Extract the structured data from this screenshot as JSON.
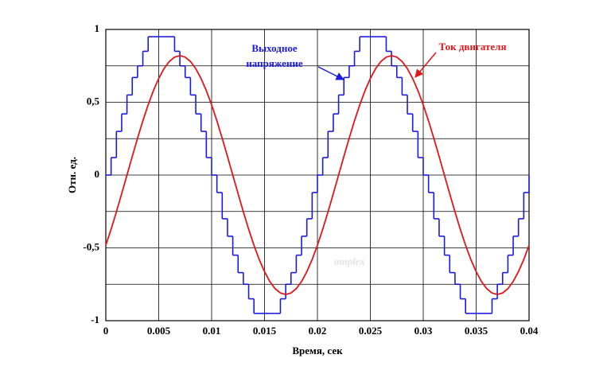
{
  "chart_data": {
    "type": "line",
    "xlabel": "Время, сек",
    "ylabel": "Отн. ед.",
    "watermark": "omplex",
    "x": [
      0,
      0.0005,
      0.001,
      0.0015,
      0.002,
      0.0025,
      0.003,
      0.0035,
      0.004,
      0.0045,
      0.005,
      0.0055,
      0.006,
      0.0065,
      0.007,
      0.0075,
      0.008,
      0.0085,
      0.009,
      0.0095,
      0.01,
      0.0105,
      0.011,
      0.0115,
      0.012,
      0.0125,
      0.013,
      0.0135,
      0.014,
      0.0145,
      0.015,
      0.0155,
      0.016,
      0.0165,
      0.017,
      0.0175,
      0.018,
      0.0185,
      0.019,
      0.0195,
      0.02,
      0.0205,
      0.021,
      0.0215,
      0.022,
      0.0225,
      0.023,
      0.0235,
      0.024,
      0.0245,
      0.025,
      0.0255,
      0.026,
      0.0265,
      0.027,
      0.0275,
      0.028,
      0.0285,
      0.029,
      0.0295,
      0.03,
      0.0305,
      0.031,
      0.0315,
      0.032,
      0.0325,
      0.033,
      0.0335,
      0.034,
      0.0345,
      0.035,
      0.0355,
      0.036,
      0.0365,
      0.037,
      0.0375,
      0.038,
      0.0385,
      0.039,
      0.0395,
      0.04
    ],
    "series": [
      {
        "name": "Выходное напряжение",
        "color": "#1a1adf",
        "step": true,
        "values": [
          0,
          0.12,
          0.3,
          0.42,
          0.55,
          0.67,
          0.75,
          0.85,
          0.95,
          0.95,
          0.95,
          0.95,
          0.95,
          0.85,
          0.75,
          0.67,
          0.55,
          0.42,
          0.3,
          0.12,
          0,
          -0.12,
          -0.3,
          -0.42,
          -0.55,
          -0.67,
          -0.75,
          -0.85,
          -0.95,
          -0.95,
          -0.95,
          -0.95,
          -0.95,
          -0.85,
          -0.75,
          -0.67,
          -0.55,
          -0.42,
          -0.3,
          -0.12,
          0,
          0.12,
          0.3,
          0.42,
          0.55,
          0.67,
          0.75,
          0.85,
          0.95,
          0.95,
          0.95,
          0.95,
          0.95,
          0.85,
          0.75,
          0.67,
          0.55,
          0.42,
          0.3,
          0.12,
          0,
          -0.12,
          -0.3,
          -0.42,
          -0.55,
          -0.67,
          -0.75,
          -0.85,
          -0.95,
          -0.95,
          -0.95,
          -0.95,
          -0.95,
          -0.85,
          -0.75,
          -0.67,
          -0.55,
          -0.42,
          -0.3,
          -0.12,
          0
        ]
      },
      {
        "name": "Ток двигателя",
        "color": "#e0161b",
        "step": false,
        "values": [
          -0.482,
          -0.372,
          -0.253,
          -0.128,
          0,
          0.128,
          0.253,
          0.372,
          0.482,
          0.58,
          0.663,
          0.731,
          0.78,
          0.81,
          0.82,
          0.81,
          0.78,
          0.731,
          0.663,
          0.58,
          0.482,
          0.372,
          0.253,
          0.128,
          0,
          -0.128,
          -0.253,
          -0.372,
          -0.482,
          -0.58,
          -0.663,
          -0.731,
          -0.78,
          -0.81,
          -0.82,
          -0.81,
          -0.78,
          -0.731,
          -0.663,
          -0.58,
          -0.482,
          -0.372,
          -0.253,
          -0.128,
          0,
          0.128,
          0.253,
          0.372,
          0.482,
          0.58,
          0.663,
          0.731,
          0.78,
          0.81,
          0.82,
          0.81,
          0.78,
          0.731,
          0.663,
          0.58,
          0.482,
          0.372,
          0.253,
          0.128,
          0,
          -0.128,
          -0.253,
          -0.372,
          -0.482,
          -0.58,
          -0.663,
          -0.731,
          -0.78,
          -0.81,
          -0.82,
          -0.81,
          -0.78,
          -0.731,
          -0.663,
          -0.58,
          -0.482
        ]
      }
    ],
    "xlim": [
      0,
      0.04
    ],
    "xticks": [
      0,
      0.005,
      0.01,
      0.015,
      0.02,
      0.025,
      0.03,
      0.035,
      0.04
    ],
    "ylim": [
      -1,
      1
    ],
    "yticks": [
      -1,
      {
        "value": -0.5,
        "label": "-0,5"
      },
      0,
      {
        "value": 0.5,
        "label": "0,5"
      },
      1
    ],
    "y_minor_ticks": [
      -0.75,
      -0.25,
      0.25,
      0.75
    ],
    "grid": true
  }
}
